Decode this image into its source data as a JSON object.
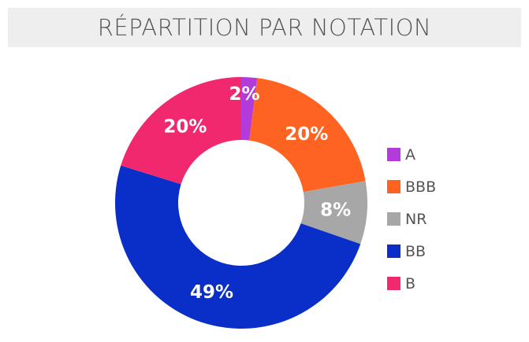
{
  "title": "RÉPARTITION PAR NOTATION",
  "chart_data": {
    "type": "pie",
    "donut": true,
    "title": "RÉPARTITION PAR NOTATION",
    "legend_position": "right",
    "slices": [
      {
        "label": "A",
        "value": 2,
        "display": "2%",
        "color": "#b33bdc"
      },
      {
        "label": "BBB",
        "value": 20,
        "display": "20%",
        "color": "#ff6322"
      },
      {
        "label": "NR",
        "value": 8,
        "display": "8%",
        "color": "#a7a7a7"
      },
      {
        "label": "BB",
        "value": 49,
        "display": "49%",
        "color": "#0a2ec8"
      },
      {
        "label": "B",
        "value": 20,
        "display": "20%",
        "color": "#f2286e"
      }
    ]
  }
}
